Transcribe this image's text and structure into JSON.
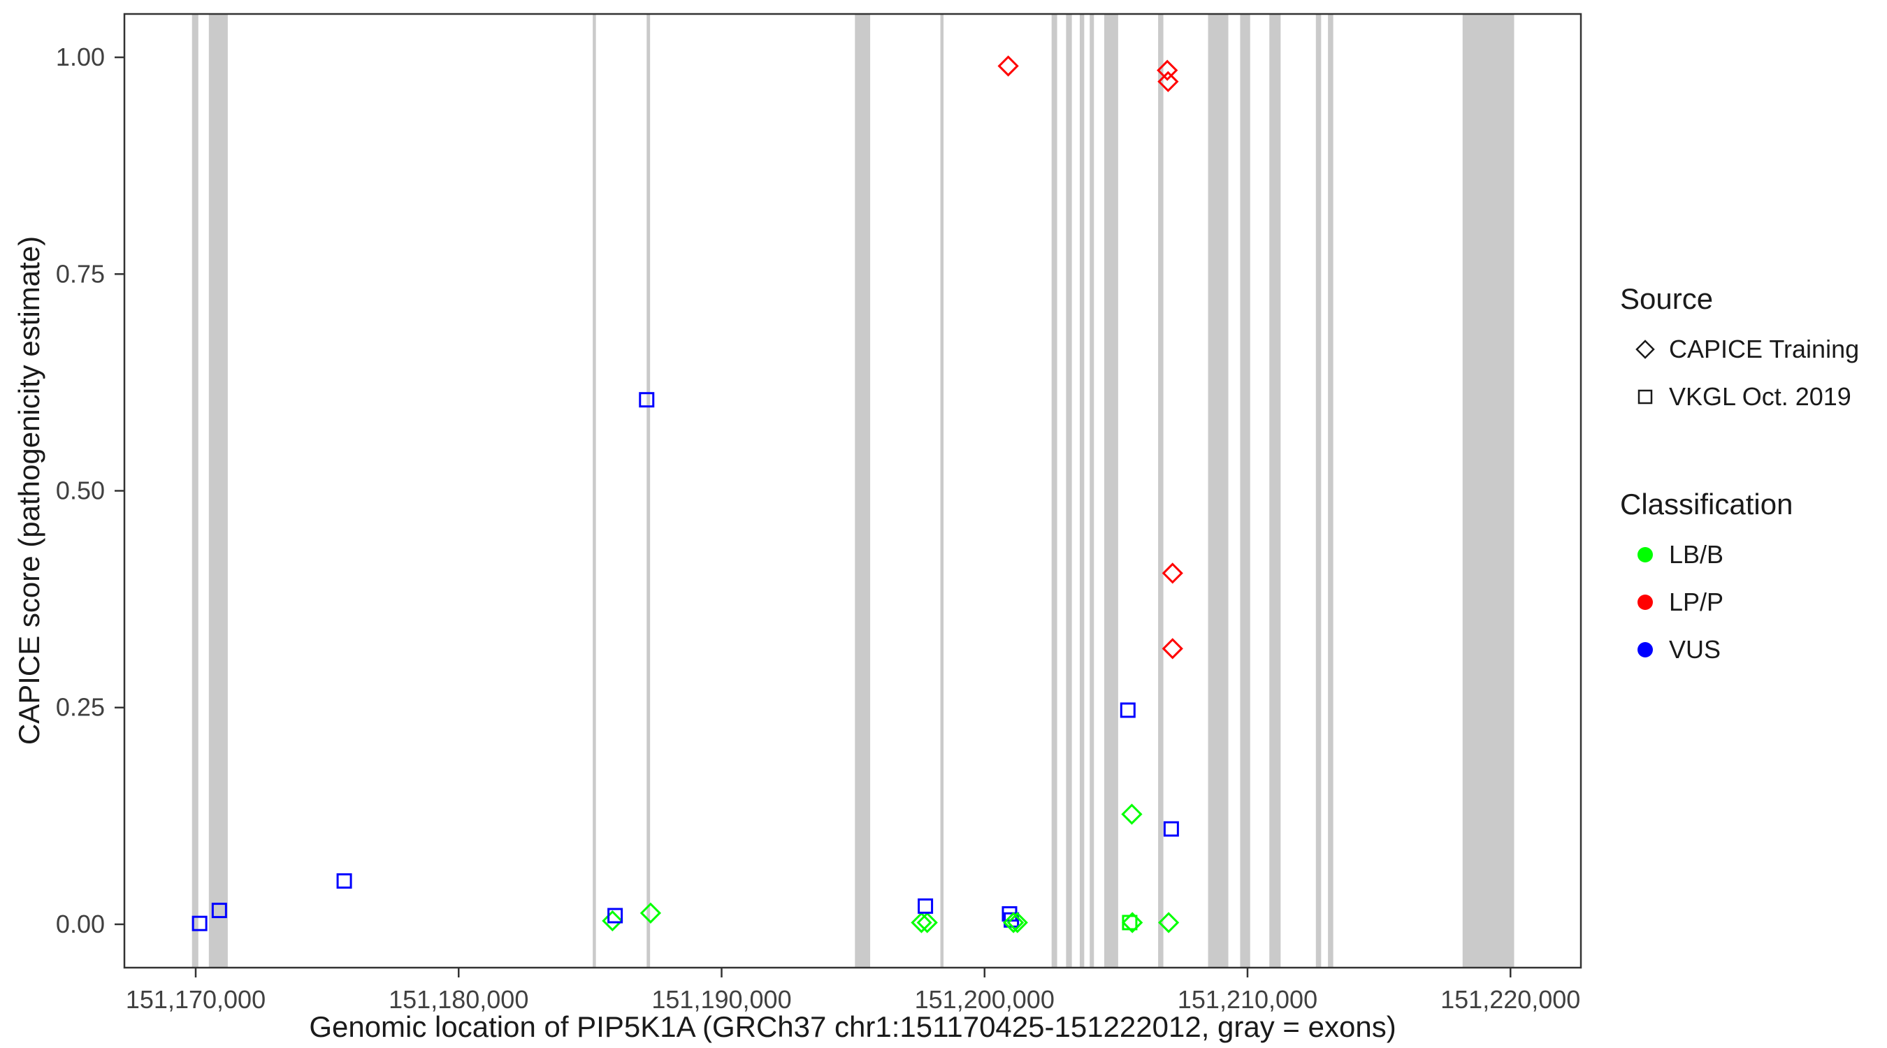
{
  "legend": {
    "source": {
      "title": "Source",
      "items": [
        {
          "label": "CAPICE Training",
          "shape": "diamond"
        },
        {
          "label": "VKGL Oct. 2019",
          "shape": "square"
        }
      ]
    },
    "classification": {
      "title": "Classification",
      "items": [
        {
          "label": "LB/B",
          "color": "#00FF00"
        },
        {
          "label": "LP/P",
          "color": "#FF0000"
        },
        {
          "label": "VUS",
          "color": "#0000FF"
        }
      ]
    }
  },
  "chart_data": {
    "type": "scatter",
    "title": "",
    "xlabel": "Genomic location of PIP5K1A (GRCh37 chr1:151170425-151222012, gray = exons)",
    "ylabel": "CAPICE score (pathogenicity estimate)",
    "xlim": [
      151167289,
      151222678
    ],
    "ylim": [
      -0.05,
      1.05
    ],
    "grid": false,
    "legend_position": "right",
    "x_ticks": [
      {
        "value": 151170000,
        "label": "151,170,000"
      },
      {
        "value": 151180000,
        "label": "151,180,000"
      },
      {
        "value": 151190000,
        "label": "151,190,000"
      },
      {
        "value": 151200000,
        "label": "151,200,000"
      },
      {
        "value": 151210000,
        "label": "151,210,000"
      },
      {
        "value": 151220000,
        "label": "151,220,000"
      }
    ],
    "y_ticks": [
      {
        "value": 0.0,
        "label": "0.00"
      },
      {
        "value": 0.25,
        "label": "0.25"
      },
      {
        "value": 0.5,
        "label": "0.50"
      },
      {
        "value": 0.75,
        "label": "0.75"
      },
      {
        "value": 1.0,
        "label": "1.00"
      }
    ],
    "exon_color": "#CACACA",
    "exons": [
      [
        151169860,
        151170100
      ],
      [
        151170500,
        151171220
      ],
      [
        151185100,
        151185220
      ],
      [
        151187150,
        151187280
      ],
      [
        151195070,
        151195650
      ],
      [
        151198320,
        151198440
      ],
      [
        151202550,
        151202760
      ],
      [
        151203100,
        151203320
      ],
      [
        151203620,
        151203790
      ],
      [
        151204000,
        151204160
      ],
      [
        151204550,
        151205080
      ],
      [
        151206600,
        151206800
      ],
      [
        151208500,
        151209270
      ],
      [
        151209720,
        151210100
      ],
      [
        151210830,
        151211260
      ],
      [
        151212600,
        151212800
      ],
      [
        151213060,
        151213260
      ],
      [
        151218180,
        151220140
      ]
    ],
    "colors": {
      "LB/B": "#00FF00",
      "LP/P": "#FF0000",
      "VUS": "#0000FF"
    },
    "shapes_by_source": {
      "CAPICE Training": "diamond",
      "VKGL Oct. 2019": "square"
    },
    "points": [
      {
        "x": 151170150,
        "y": 0.001,
        "source": "VKGL Oct. 2019",
        "classification": "VUS"
      },
      {
        "x": 151170900,
        "y": 0.016,
        "source": "VKGL Oct. 2019",
        "classification": "VUS"
      },
      {
        "x": 151175650,
        "y": 0.05,
        "source": "VKGL Oct. 2019",
        "classification": "VUS"
      },
      {
        "x": 151185850,
        "y": 0.004,
        "source": "CAPICE Training",
        "classification": "LB/B"
      },
      {
        "x": 151185950,
        "y": 0.01,
        "source": "VKGL Oct. 2019",
        "classification": "VUS"
      },
      {
        "x": 151187150,
        "y": 0.605,
        "source": "VKGL Oct. 2019",
        "classification": "VUS"
      },
      {
        "x": 151187300,
        "y": 0.013,
        "source": "CAPICE Training",
        "classification": "LB/B"
      },
      {
        "x": 151197600,
        "y": 0.002,
        "source": "CAPICE Training",
        "classification": "LB/B"
      },
      {
        "x": 151197820,
        "y": 0.002,
        "source": "CAPICE Training",
        "classification": "LB/B"
      },
      {
        "x": 151197750,
        "y": 0.021,
        "source": "VKGL Oct. 2019",
        "classification": "VUS"
      },
      {
        "x": 151200900,
        "y": 0.99,
        "source": "CAPICE Training",
        "classification": "LP/P"
      },
      {
        "x": 151200950,
        "y": 0.012,
        "source": "VKGL Oct. 2019",
        "classification": "VUS"
      },
      {
        "x": 151201020,
        "y": 0.005,
        "source": "VKGL Oct. 2019",
        "classification": "VUS"
      },
      {
        "x": 151201100,
        "y": 0.002,
        "source": "CAPICE Training",
        "classification": "LB/B"
      },
      {
        "x": 151201250,
        "y": 0.002,
        "source": "CAPICE Training",
        "classification": "LB/B"
      },
      {
        "x": 151205450,
        "y": 0.247,
        "source": "VKGL Oct. 2019",
        "classification": "VUS"
      },
      {
        "x": 151205600,
        "y": 0.127,
        "source": "CAPICE Training",
        "classification": "LB/B"
      },
      {
        "x": 151205520,
        "y": 0.002,
        "source": "VKGL Oct. 2019",
        "classification": "LB/B"
      },
      {
        "x": 151205620,
        "y": 0.002,
        "source": "CAPICE Training",
        "classification": "LB/B"
      },
      {
        "x": 151206950,
        "y": 0.985,
        "source": "CAPICE Training",
        "classification": "LP/P"
      },
      {
        "x": 151206980,
        "y": 0.972,
        "source": "CAPICE Training",
        "classification": "LP/P"
      },
      {
        "x": 151207150,
        "y": 0.405,
        "source": "CAPICE Training",
        "classification": "LP/P"
      },
      {
        "x": 151207150,
        "y": 0.318,
        "source": "CAPICE Training",
        "classification": "LP/P"
      },
      {
        "x": 151207100,
        "y": 0.11,
        "source": "VKGL Oct. 2019",
        "classification": "VUS"
      },
      {
        "x": 151207000,
        "y": 0.002,
        "source": "CAPICE Training",
        "classification": "LB/B"
      }
    ]
  }
}
